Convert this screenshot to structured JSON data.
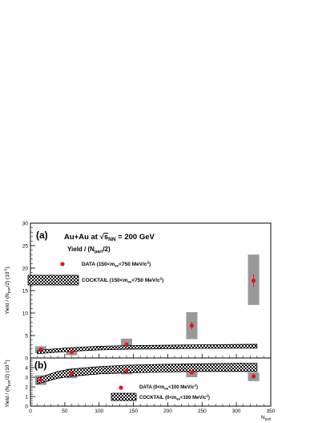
{
  "chart_data": [
    {
      "type": "scatter",
      "panel_label": "(a)",
      "title": "Au+Au at √s_NN = 200 GeV",
      "subtitle": "Yield / (N_part/2)",
      "ylabel": "Yield / (N_part/2) (10^-5)",
      "xlabel": "N_part",
      "xlim": [
        0,
        350
      ],
      "ylim": [
        0,
        30
      ],
      "y_ticks": [
        0,
        5,
        10,
        15,
        20,
        25,
        30
      ],
      "series": [
        {
          "name": "DATA (150<m_ee<750 MeV/c²)",
          "style": "points",
          "color": "#ee1111",
          "x": [
            15,
            60,
            140,
            235,
            325
          ],
          "y": [
            1.9,
            1.3,
            3.0,
            7.2,
            17.2
          ],
          "syst_low": [
            1.1,
            0.6,
            1.9,
            4.2,
            11.8
          ],
          "syst_high": [
            2.6,
            1.8,
            4.3,
            10.2,
            23.0
          ],
          "stat_err": [
            0.3,
            0.3,
            0.5,
            0.8,
            1.4
          ]
        },
        {
          "name": "COCKTAIL (150<m_ee<750 MeV/c²)",
          "style": "band",
          "x": [
            10,
            40,
            60,
            100,
            140,
            200,
            250,
            300,
            330
          ],
          "y_low": [
            0.95,
            1.3,
            1.5,
            1.8,
            1.95,
            2.05,
            2.15,
            2.2,
            2.2
          ],
          "y_high": [
            1.7,
            2.1,
            2.3,
            2.6,
            2.75,
            2.85,
            2.95,
            3.0,
            3.05
          ]
        }
      ]
    },
    {
      "type": "scatter",
      "panel_label": "(b)",
      "ylabel": "Yield / (N_part/2) (10^-5)",
      "xlabel": "N_part",
      "xlim": [
        0,
        350
      ],
      "ylim": [
        0,
        5
      ],
      "y_ticks": [
        0,
        1,
        2,
        3,
        4
      ],
      "x_ticks": [
        0,
        50,
        100,
        150,
        200,
        250,
        300,
        350
      ],
      "series": [
        {
          "name": "DATA (0<m_ee<100 MeV/c²)",
          "style": "points",
          "color": "#ee1111",
          "x": [
            15,
            60,
            140,
            235,
            325
          ],
          "y": [
            2.7,
            3.4,
            3.7,
            3.5,
            3.1
          ],
          "syst_low": [
            2.2,
            2.9,
            3.3,
            3.0,
            2.6
          ],
          "syst_high": [
            3.2,
            3.9,
            4.1,
            4.0,
            3.5
          ],
          "stat_err": [
            0.1,
            0.1,
            0.1,
            0.1,
            0.1
          ]
        },
        {
          "name": "COCKTAIL (0<m_ee<100 MeV/c²)",
          "style": "band",
          "x": [
            10,
            40,
            60,
            100,
            140,
            200,
            250,
            300,
            330
          ],
          "y_low": [
            2.3,
            2.9,
            3.1,
            3.35,
            3.45,
            3.55,
            3.6,
            3.6,
            3.6
          ],
          "y_high": [
            2.9,
            3.6,
            3.85,
            4.1,
            4.25,
            4.35,
            4.4,
            4.45,
            4.45
          ]
        }
      ]
    }
  ],
  "colors": {
    "data_marker": "#ee1111",
    "syst_box": "#999999",
    "axis": "#000000"
  }
}
